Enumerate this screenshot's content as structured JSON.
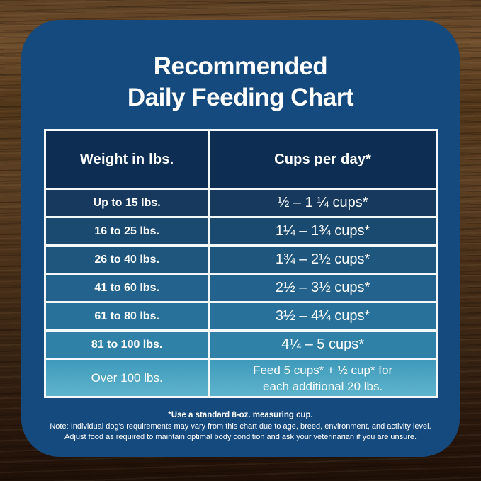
{
  "title": {
    "line1": "Recommended",
    "line2": "Daily Feeding Chart"
  },
  "chart_data": {
    "type": "table",
    "title": "Recommended Daily Feeding Chart",
    "columns": [
      "Weight in lbs.",
      "Cups per day*"
    ],
    "rows": [
      {
        "weight": "Up to 15 lbs.",
        "cups": "½ – 1 ¼ cups*"
      },
      {
        "weight": "16 to 25 lbs.",
        "cups": "1¼ – 1¾  cups*"
      },
      {
        "weight": "26 to 40 lbs.",
        "cups": "1¾ – 2½ cups*"
      },
      {
        "weight": "41 to 60 lbs.",
        "cups": "2½ – 3½ cups*"
      },
      {
        "weight": "61 to 80 lbs.",
        "cups": "3½ – 4¼ cups*"
      },
      {
        "weight": "81 to 100 lbs.",
        "cups": "4¼ – 5 cups*"
      },
      {
        "weight": "Over 100 lbs.",
        "cups": "Feed 5 cups* + ½ cup* for\neach additional 20 lbs."
      }
    ],
    "footnotes": [
      "*Use a standard 8-oz. measuring cup.",
      "Note: Individual dog's requirements may vary from this chart due to age, breed, environment, and activity level.",
      "Adjust food as required to maintain optimal body condition and ask your veterinarian if you are unsure."
    ]
  },
  "theme": {
    "card_background": "#154a7e",
    "header_background": "#0d2e52",
    "border_color": "#f5f8fa",
    "text_color": "#ffffff",
    "row_backgrounds": [
      "#16395d",
      "#1b4a70",
      "#1f567e",
      "#22628c",
      "#28719a",
      "#2f81a8",
      "linear-gradient(180deg,#3e99ba,#5fb5cd)"
    ],
    "wood_dark": "#2a180d",
    "wood_light": "#6f4e2c"
  }
}
